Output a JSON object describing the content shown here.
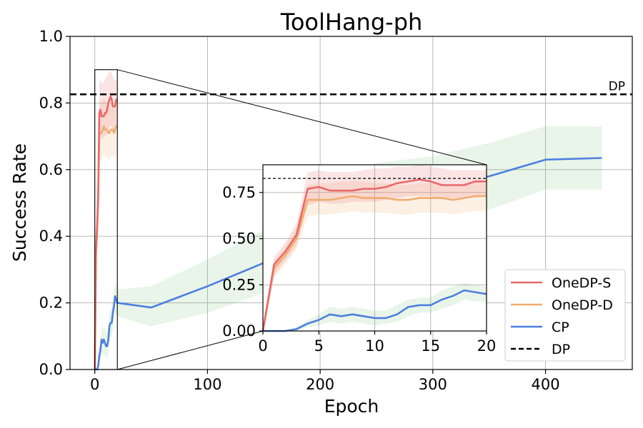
{
  "chart_data": [
    {
      "type": "line",
      "title": "ToolHang-ph",
      "xlabel": "Epoch",
      "ylabel": "Success Rate",
      "xlim": [
        -22,
        477
      ],
      "ylim": [
        0.0,
        1.0
      ],
      "xticks": [
        "0",
        "100",
        "200",
        "300",
        "400"
      ],
      "xtick_values": [
        0,
        100,
        200,
        300,
        400
      ],
      "yticks": [
        "0.0",
        "0.2",
        "0.4",
        "0.6",
        "0.8",
        "1.0"
      ],
      "ytick_values": [
        0.0,
        0.2,
        0.4,
        0.6,
        0.8,
        1.0
      ],
      "grid": true,
      "legend_position": "lower-right",
      "reference_line": {
        "name": "DP",
        "label": "DP",
        "y": 0.826,
        "color": "#000000",
        "style": "dashed"
      },
      "series": [
        {
          "name": "OneDP-S",
          "color": "#e8696b",
          "x": [
            0,
            1,
            2,
            3,
            4,
            5,
            6,
            7,
            8,
            9,
            10,
            11,
            12,
            13,
            14,
            15,
            16,
            17,
            18,
            19,
            20
          ],
          "y": [
            0.0,
            0.36,
            0.43,
            0.52,
            0.77,
            0.78,
            0.76,
            0.76,
            0.76,
            0.77,
            0.77,
            0.78,
            0.8,
            0.81,
            0.82,
            0.81,
            0.79,
            0.79,
            0.79,
            0.81,
            0.81
          ],
          "band_upper": [
            0.0,
            0.4,
            0.48,
            0.58,
            0.86,
            0.87,
            0.86,
            0.86,
            0.86,
            0.87,
            0.88,
            0.88,
            0.89,
            0.89,
            0.9,
            0.89,
            0.88,
            0.87,
            0.87,
            0.87,
            0.87
          ],
          "band_lower": [
            0.0,
            0.3,
            0.38,
            0.46,
            0.68,
            0.7,
            0.69,
            0.69,
            0.7,
            0.7,
            0.7,
            0.71,
            0.72,
            0.73,
            0.73,
            0.73,
            0.72,
            0.72,
            0.72,
            0.73,
            0.73
          ]
        },
        {
          "name": "OneDP-D",
          "color": "#efad70",
          "x": [
            0,
            1,
            2,
            3,
            4,
            5,
            6,
            7,
            8,
            9,
            10,
            11,
            12,
            13,
            14,
            15,
            16,
            17,
            18,
            19,
            20
          ],
          "y": [
            0.0,
            0.34,
            0.41,
            0.5,
            0.71,
            0.71,
            0.71,
            0.72,
            0.73,
            0.72,
            0.72,
            0.72,
            0.71,
            0.71,
            0.72,
            0.72,
            0.72,
            0.71,
            0.72,
            0.73,
            0.73
          ],
          "band_upper": [
            0.0,
            0.38,
            0.46,
            0.56,
            0.79,
            0.8,
            0.8,
            0.81,
            0.81,
            0.81,
            0.8,
            0.8,
            0.79,
            0.79,
            0.8,
            0.8,
            0.8,
            0.79,
            0.8,
            0.81,
            0.81
          ],
          "band_lower": [
            0.0,
            0.29,
            0.36,
            0.44,
            0.62,
            0.63,
            0.63,
            0.64,
            0.65,
            0.64,
            0.64,
            0.64,
            0.63,
            0.63,
            0.64,
            0.64,
            0.64,
            0.63,
            0.64,
            0.65,
            0.65
          ]
        },
        {
          "name": "CP",
          "color": "#4e7fe0",
          "x": [
            0,
            1,
            2,
            3,
            4,
            5,
            6,
            7,
            8,
            9,
            10,
            11,
            12,
            13,
            14,
            15,
            16,
            17,
            18,
            19,
            20,
            50,
            100,
            150,
            200,
            250,
            300,
            350,
            400,
            450
          ],
          "y": [
            0.0,
            0.0,
            0.0,
            0.01,
            0.04,
            0.06,
            0.09,
            0.08,
            0.09,
            0.08,
            0.07,
            0.07,
            0.09,
            0.13,
            0.14,
            0.14,
            0.17,
            0.19,
            0.22,
            0.21,
            0.2,
            0.186,
            0.25,
            0.32,
            0.44,
            0.52,
            0.545,
            0.58,
            0.63,
            0.635
          ],
          "band_upper": [
            0.0,
            0.0,
            0.0,
            0.02,
            0.06,
            0.09,
            0.13,
            0.12,
            0.13,
            0.12,
            0.11,
            0.11,
            0.14,
            0.17,
            0.18,
            0.18,
            0.22,
            0.24,
            0.26,
            0.25,
            0.24,
            0.25,
            0.33,
            0.42,
            0.55,
            0.62,
            0.64,
            0.68,
            0.73,
            0.73
          ],
          "band_lower": [
            0.0,
            0.0,
            0.0,
            0.0,
            0.02,
            0.03,
            0.05,
            0.04,
            0.05,
            0.04,
            0.03,
            0.04,
            0.05,
            0.08,
            0.1,
            0.1,
            0.12,
            0.14,
            0.17,
            0.16,
            0.16,
            0.13,
            0.17,
            0.23,
            0.33,
            0.42,
            0.45,
            0.48,
            0.54,
            0.54
          ]
        }
      ]
    },
    {
      "type": "line",
      "title": "",
      "xlim": [
        0,
        20
      ],
      "ylim": [
        0.0,
        0.9
      ],
      "xticks": [
        "0",
        "5",
        "10",
        "15",
        "20"
      ],
      "xtick_values": [
        0,
        5,
        10,
        15,
        20
      ],
      "yticks": [
        "0.00",
        "0.25",
        "0.50",
        "0.75"
      ],
      "ytick_values": [
        0.0,
        0.25,
        0.5,
        0.75
      ],
      "grid": true,
      "reference_y": 0.826,
      "zoom_region": {
        "x": [
          0,
          20
        ],
        "y": [
          0.0,
          0.9
        ]
      }
    }
  ]
}
